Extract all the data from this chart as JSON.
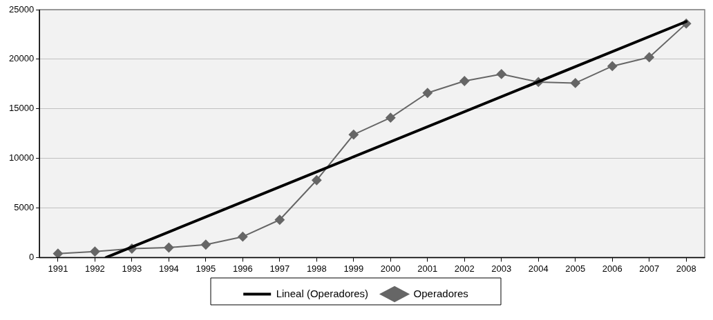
{
  "chart_data": {
    "type": "line",
    "x": [
      1991,
      1992,
      1993,
      1994,
      1995,
      1996,
      1997,
      1998,
      1999,
      2000,
      2001,
      2002,
      2003,
      2004,
      2005,
      2006,
      2007,
      2008
    ],
    "series": [
      {
        "name": "Operadores",
        "color": "#666666",
        "values": [
          400,
          600,
          900,
          1000,
          1300,
          2100,
          3800,
          7800,
          12400,
          14100,
          16600,
          17800,
          18500,
          17700,
          17600,
          19300,
          20200,
          23600
        ]
      },
      {
        "name": "Lineal (Operadores)",
        "type": "line",
        "color": "#000000",
        "marker": "none",
        "x": [
          1992.3,
          2008
        ],
        "values": [
          0,
          23800
        ]
      }
    ],
    "xlim": [
      1990.5,
      2008.5
    ],
    "xticks": [
      1991,
      1992,
      1993,
      1994,
      1995,
      1996,
      1997,
      1998,
      1999,
      2000,
      2001,
      2002,
      2003,
      2004,
      2005,
      2006,
      2007,
      2008
    ],
    "ylim": [
      0,
      25000
    ],
    "yticks": [
      0,
      5000,
      10000,
      15000,
      20000,
      25000
    ],
    "grid": "y",
    "legend": "bottom",
    "marker": "diamond"
  }
}
